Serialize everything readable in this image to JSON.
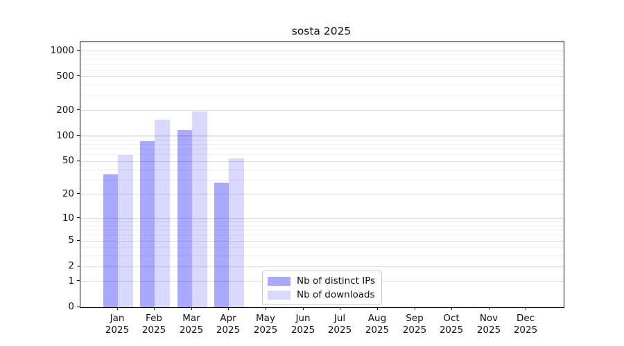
{
  "title": "sosta 2025",
  "legend": {
    "entries": [
      {
        "label": "Nb of distinct IPs"
      },
      {
        "label": "Nb of downloads"
      }
    ]
  },
  "colors": {
    "bar_distinct_ips": "#0000FF56",
    "bar_downloads": "#0000FF26",
    "gridline_minor": "#EFEFEF",
    "gridline_major": "#DCDCDC",
    "gridline_100": "#B0B0B0",
    "axis": "#000000"
  },
  "chart_data": {
    "type": "bar",
    "title": "sosta 2025",
    "xlabel": "",
    "ylabel": "",
    "categories": [
      "Jan 2025",
      "Feb 2025",
      "Mar 2025",
      "Apr 2025",
      "May 2025",
      "Jun 2025",
      "Jul 2025",
      "Aug 2025",
      "Sep 2025",
      "Oct 2025",
      "Nov 2025",
      "Dec 2025"
    ],
    "series": [
      {
        "name": "Nb of distinct IPs",
        "color": "#0000FF56",
        "values": [
          35,
          88,
          118,
          28,
          0,
          0,
          0,
          0,
          0,
          0,
          0,
          0
        ]
      },
      {
        "name": "Nb of downloads",
        "color": "#0000FF26",
        "values": [
          60,
          155,
          195,
          54,
          0,
          0,
          0,
          0,
          0,
          0,
          0,
          0
        ]
      }
    ],
    "yscale": "log(1+y)",
    "ylim": [
      0,
      1273
    ],
    "yticks": [
      0,
      1,
      2,
      5,
      10,
      20,
      50,
      100,
      200,
      500,
      1000
    ],
    "minor_yticks": [
      3,
      4,
      6,
      7,
      8,
      9,
      30,
      40,
      60,
      70,
      80,
      90,
      300,
      400,
      600,
      700,
      800,
      900
    ],
    "grid": true,
    "legend_position": "inside bottom-center"
  }
}
